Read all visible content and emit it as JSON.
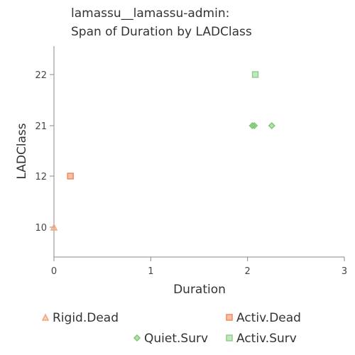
{
  "chart_data": {
    "type": "scatter",
    "title_lines": [
      "lamassu__lamassu-admin:",
      "Span of Duration by LADClass"
    ],
    "xlabel": "Duration",
    "ylabel": "LADClass",
    "xlim": [
      0,
      3
    ],
    "x_ticks": [
      0,
      1,
      2,
      3
    ],
    "y_categories": [
      "10",
      "12",
      "21",
      "22"
    ],
    "grid": false,
    "legend_position": "bottom",
    "series": [
      {
        "name": "Rigid.Dead",
        "marker": "triangle",
        "color": "#f4a582",
        "points": [
          {
            "x": 0.0,
            "y": "10"
          }
        ]
      },
      {
        "name": "Activ.Dead",
        "marker": "square",
        "color": "#f08a5d",
        "points": [
          {
            "x": 0.17,
            "y": "12"
          }
        ]
      },
      {
        "name": "Quiet.Surv",
        "marker": "diamond",
        "color": "#7bc96f",
        "points": [
          {
            "x": 2.05,
            "y": "21"
          },
          {
            "x": 2.07,
            "y": "21"
          },
          {
            "x": 2.25,
            "y": "21"
          }
        ]
      },
      {
        "name": "Activ.Surv",
        "marker": "square",
        "color": "#8fd18a",
        "points": [
          {
            "x": 2.08,
            "y": "22"
          }
        ]
      }
    ]
  }
}
